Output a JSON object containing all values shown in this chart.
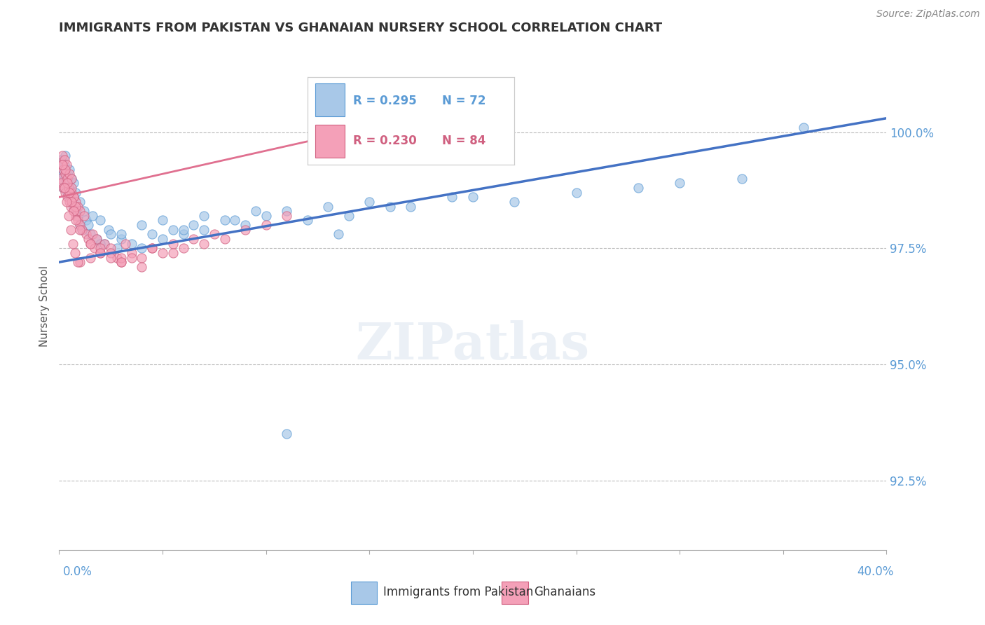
{
  "title": "IMMIGRANTS FROM PAKISTAN VS GHANAIAN NURSERY SCHOOL CORRELATION CHART",
  "source": "Source: ZipAtlas.com",
  "ylabel": "Nursery School",
  "legend_r_blue": "R = 0.295",
  "legend_n_blue": "N = 72",
  "legend_r_pink": "R = 0.230",
  "legend_n_pink": "N = 84",
  "legend_label_blue": "Immigrants from Pakistan",
  "legend_label_pink": "Ghanaians",
  "blue_color": "#a8c8e8",
  "pink_color": "#f4a0b8",
  "blue_edge_color": "#5b9bd5",
  "pink_edge_color": "#d06080",
  "blue_line_color": "#4472c4",
  "pink_line_color": "#e07090",
  "title_color": "#333333",
  "axis_label_color": "#5b9bd5",
  "background_color": "#ffffff",
  "xlim": [
    0.0,
    40.0
  ],
  "ylim": [
    91.0,
    101.5
  ],
  "ytick_vals": [
    92.5,
    95.0,
    97.5,
    100.0
  ],
  "blue_trend_x0": 0.0,
  "blue_trend_y0": 97.2,
  "blue_trend_x1": 40.0,
  "blue_trend_y1": 100.3,
  "pink_trend_x0": 0.0,
  "pink_trend_y0": 98.6,
  "pink_trend_x1": 15.0,
  "pink_trend_y1": 100.1,
  "blue_scatter_x": [
    0.1,
    0.1,
    0.15,
    0.2,
    0.2,
    0.25,
    0.3,
    0.3,
    0.35,
    0.4,
    0.4,
    0.45,
    0.5,
    0.5,
    0.6,
    0.6,
    0.7,
    0.7,
    0.8,
    0.8,
    0.9,
    1.0,
    1.0,
    1.1,
    1.2,
    1.3,
    1.4,
    1.5,
    1.6,
    1.8,
    2.0,
    2.2,
    2.4,
    2.5,
    2.8,
    3.0,
    3.5,
    4.0,
    4.5,
    5.0,
    5.5,
    6.0,
    6.5,
    7.0,
    8.0,
    9.0,
    10.0,
    11.0,
    12.0,
    13.0,
    14.0,
    15.0,
    17.0,
    20.0,
    22.0,
    25.0,
    30.0,
    33.0,
    2.0,
    3.0,
    4.0,
    5.0,
    6.0,
    7.0,
    8.5,
    9.5,
    11.0,
    13.5,
    16.0,
    19.0,
    28.0,
    36.0
  ],
  "blue_scatter_y": [
    99.0,
    99.4,
    99.2,
    99.1,
    98.8,
    99.3,
    99.5,
    99.0,
    98.9,
    98.7,
    99.1,
    98.6,
    98.8,
    99.2,
    98.5,
    99.0,
    98.4,
    98.9,
    98.3,
    98.7,
    98.2,
    98.0,
    98.5,
    97.9,
    98.3,
    98.1,
    98.0,
    97.8,
    98.2,
    97.7,
    98.1,
    97.6,
    97.9,
    97.8,
    97.5,
    97.7,
    97.6,
    97.5,
    97.8,
    97.7,
    97.9,
    97.8,
    98.0,
    97.9,
    98.1,
    98.0,
    98.2,
    98.3,
    98.1,
    98.4,
    98.2,
    98.5,
    98.4,
    98.6,
    98.5,
    98.7,
    98.9,
    99.0,
    97.6,
    97.8,
    98.0,
    98.1,
    97.9,
    98.2,
    98.1,
    98.3,
    93.5,
    97.8,
    98.4,
    98.6,
    98.8,
    100.1
  ],
  "pink_scatter_x": [
    0.05,
    0.1,
    0.1,
    0.15,
    0.2,
    0.2,
    0.25,
    0.3,
    0.3,
    0.35,
    0.4,
    0.4,
    0.45,
    0.5,
    0.5,
    0.55,
    0.6,
    0.6,
    0.7,
    0.7,
    0.8,
    0.8,
    0.9,
    0.9,
    1.0,
    1.0,
    1.1,
    1.2,
    1.3,
    1.4,
    1.5,
    1.6,
    1.7,
    1.8,
    2.0,
    2.2,
    2.5,
    2.8,
    3.0,
    3.2,
    3.5,
    4.0,
    4.5,
    5.0,
    5.5,
    6.0,
    6.5,
    7.0,
    7.5,
    8.0,
    9.0,
    10.0,
    11.0,
    2.0,
    3.0,
    1.0,
    0.6,
    0.7,
    0.8,
    1.5,
    2.5,
    3.5,
    4.5,
    5.5,
    0.3,
    0.4,
    0.5,
    0.6,
    0.7,
    0.8,
    1.0,
    1.5,
    2.0,
    2.5,
    3.0,
    4.0,
    0.15,
    0.25,
    0.35,
    0.45,
    0.55,
    0.65,
    0.75,
    0.9
  ],
  "pink_scatter_y": [
    99.0,
    99.3,
    98.9,
    99.5,
    99.2,
    98.8,
    99.4,
    99.1,
    98.7,
    99.3,
    98.6,
    99.0,
    98.8,
    98.5,
    99.1,
    98.4,
    98.7,
    99.0,
    98.3,
    98.6,
    98.2,
    98.5,
    98.1,
    98.4,
    98.0,
    98.3,
    97.9,
    98.2,
    97.8,
    97.7,
    97.6,
    97.8,
    97.5,
    97.7,
    97.4,
    97.6,
    97.5,
    97.3,
    97.2,
    97.6,
    97.4,
    97.3,
    97.5,
    97.4,
    97.6,
    97.5,
    97.7,
    97.6,
    97.8,
    97.7,
    97.9,
    98.0,
    98.2,
    97.5,
    97.3,
    97.2,
    98.8,
    98.6,
    98.4,
    97.3,
    97.4,
    97.3,
    97.5,
    97.4,
    99.2,
    98.9,
    98.7,
    98.5,
    98.3,
    98.1,
    97.9,
    97.6,
    97.4,
    97.3,
    97.2,
    97.1,
    99.3,
    98.8,
    98.5,
    98.2,
    97.9,
    97.6,
    97.4,
    97.2
  ]
}
